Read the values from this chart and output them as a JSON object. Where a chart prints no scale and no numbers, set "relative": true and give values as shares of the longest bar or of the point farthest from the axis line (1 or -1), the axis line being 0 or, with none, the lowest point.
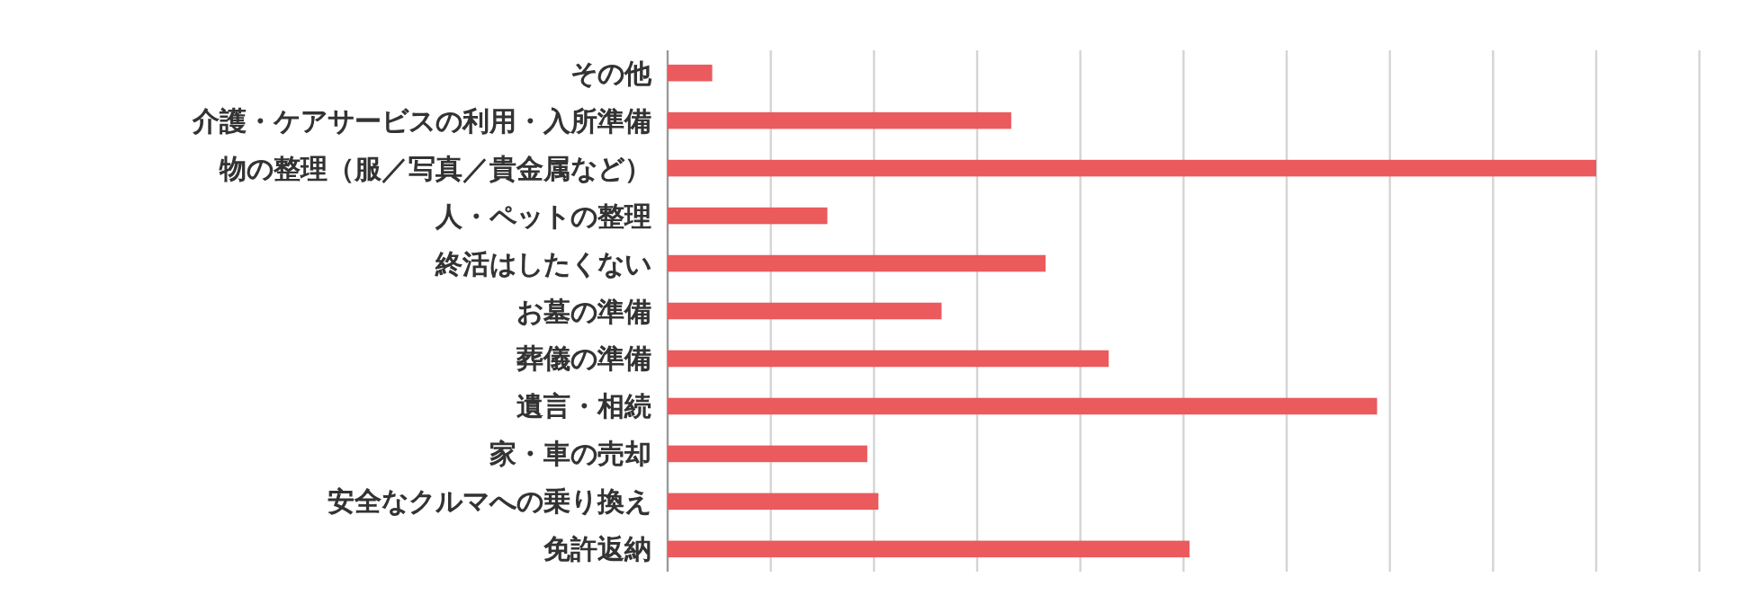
{
  "chart_data": {
    "type": "bar",
    "orientation": "horizontal",
    "relative": true,
    "grid": "x",
    "categories": [
      "その他",
      "介護・ケアサービスの利用・入所準備",
      "物の整理（服／写真／貴金属など）",
      "人・ペットの整理",
      "終活はしたくない",
      "お墓の準備",
      "葬儀の準備",
      "遺言・相続",
      "家・車の売却",
      "安全なクルマへの乗り換え",
      "免許返納"
    ],
    "values": [
      0.048,
      0.37,
      1,
      0.172,
      0.407,
      0.295,
      0.475,
      0.764,
      0.215,
      0.227,
      0.562
    ],
    "color": "#eb5a5c"
  }
}
